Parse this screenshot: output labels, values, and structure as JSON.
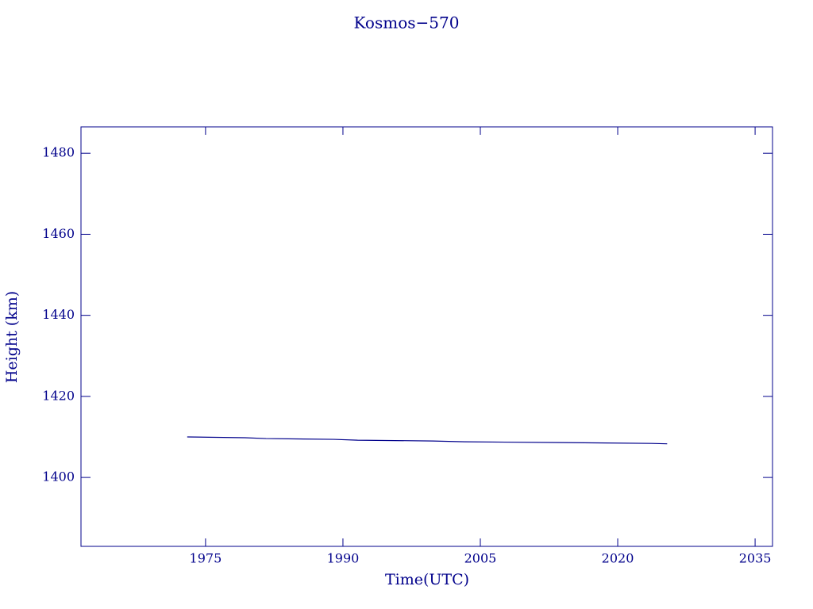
{
  "chart_data": {
    "type": "line",
    "title": "Kosmos−570",
    "x_label": "Time(UTC)",
    "y_label": "Height (km)",
    "x": [
      1973.0,
      1979.3,
      1981.6,
      1989.0,
      1991.6,
      1999.8,
      2003.3,
      2014.0,
      2023.7,
      2025.4
    ],
    "series": [
      {
        "name": "Kosmos−570",
        "color": "#00008b",
        "values": [
          1410.0,
          1409.8,
          1409.6,
          1409.4,
          1409.2,
          1409.0,
          1408.8,
          1408.6,
          1408.4,
          1408.3
        ]
      }
    ],
    "xlim": [
      1961.4,
      2036.9
    ],
    "ylim": [
      1383,
      1486.5
    ],
    "xticks": [
      1975,
      1990,
      2005,
      2020,
      2035
    ],
    "yticks": [
      1400,
      1420,
      1440,
      1460,
      1480
    ],
    "grid": false
  }
}
